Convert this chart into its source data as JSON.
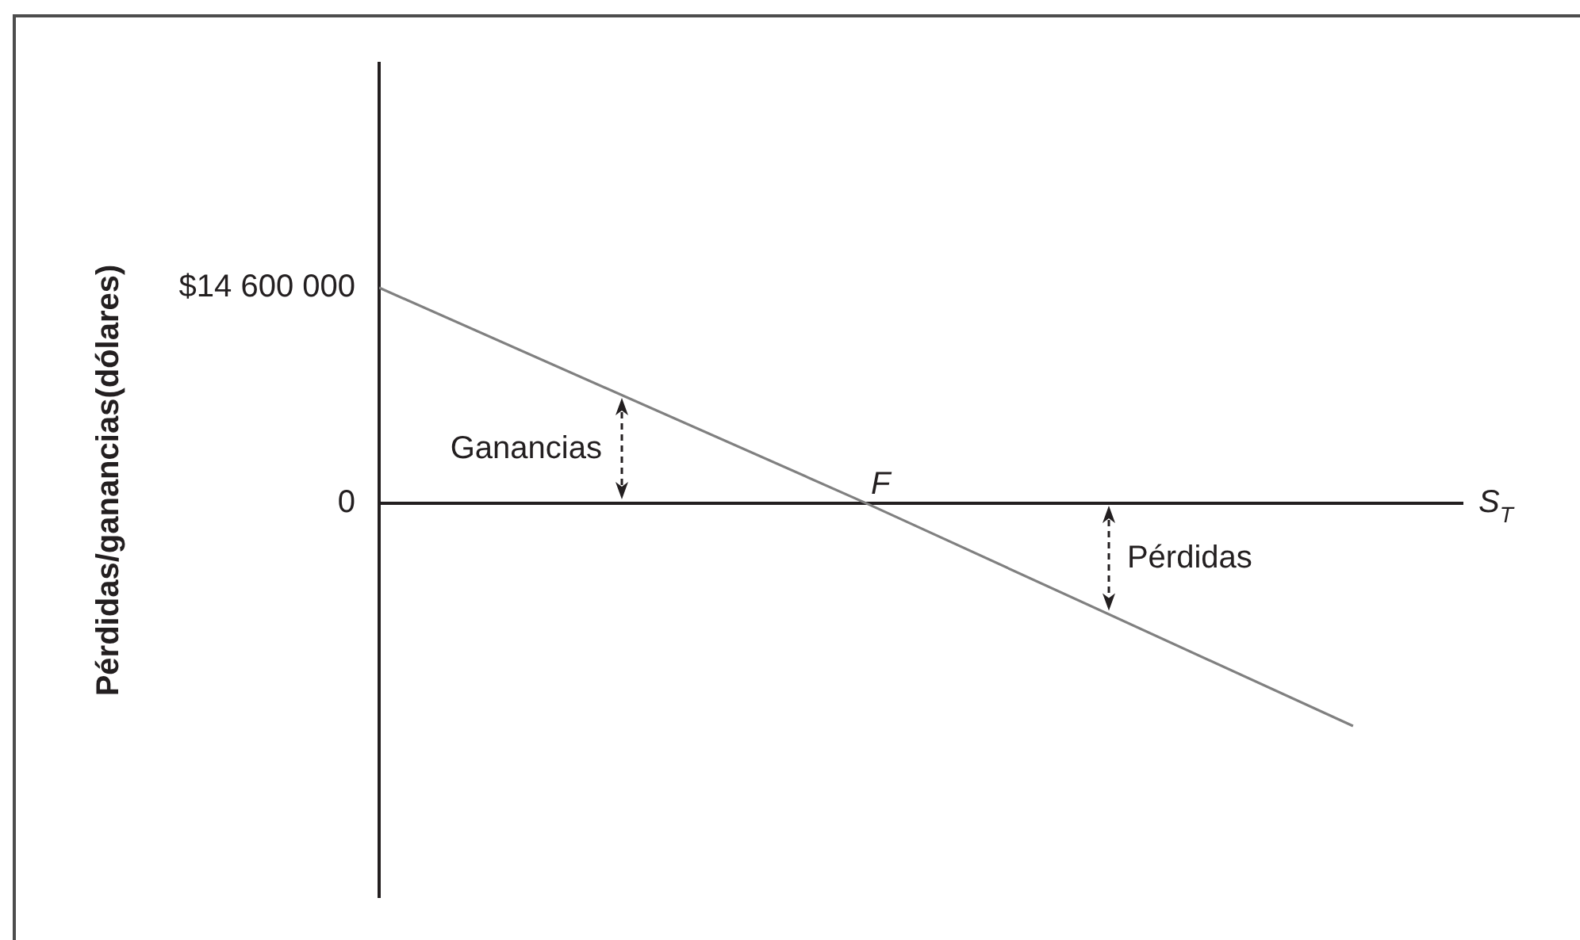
{
  "chart_data": {
    "type": "line",
    "ylabel": "Pérdidas/ganancias(dólares)",
    "xlabel": "S$_{T}$",
    "categories": [
      null,
      null,
      null
    ],
    "values": [
      14600000,
      0,
      -15100000
    ],
    "color": "#808080",
    "ylim": [
      -26700000,
      29800000
    ],
    "yticks": [
      {
        "value": 14600000,
        "label": "$14 600 000"
      },
      0
    ],
    "tick_labels": "y",
    "legend": false,
    "marker": "none",
    "line_style": "solid",
    "annotations": [
      {
        "text": "F",
        "y": 0
      },
      "Ganancias",
      "Pérdidas"
    ]
  }
}
